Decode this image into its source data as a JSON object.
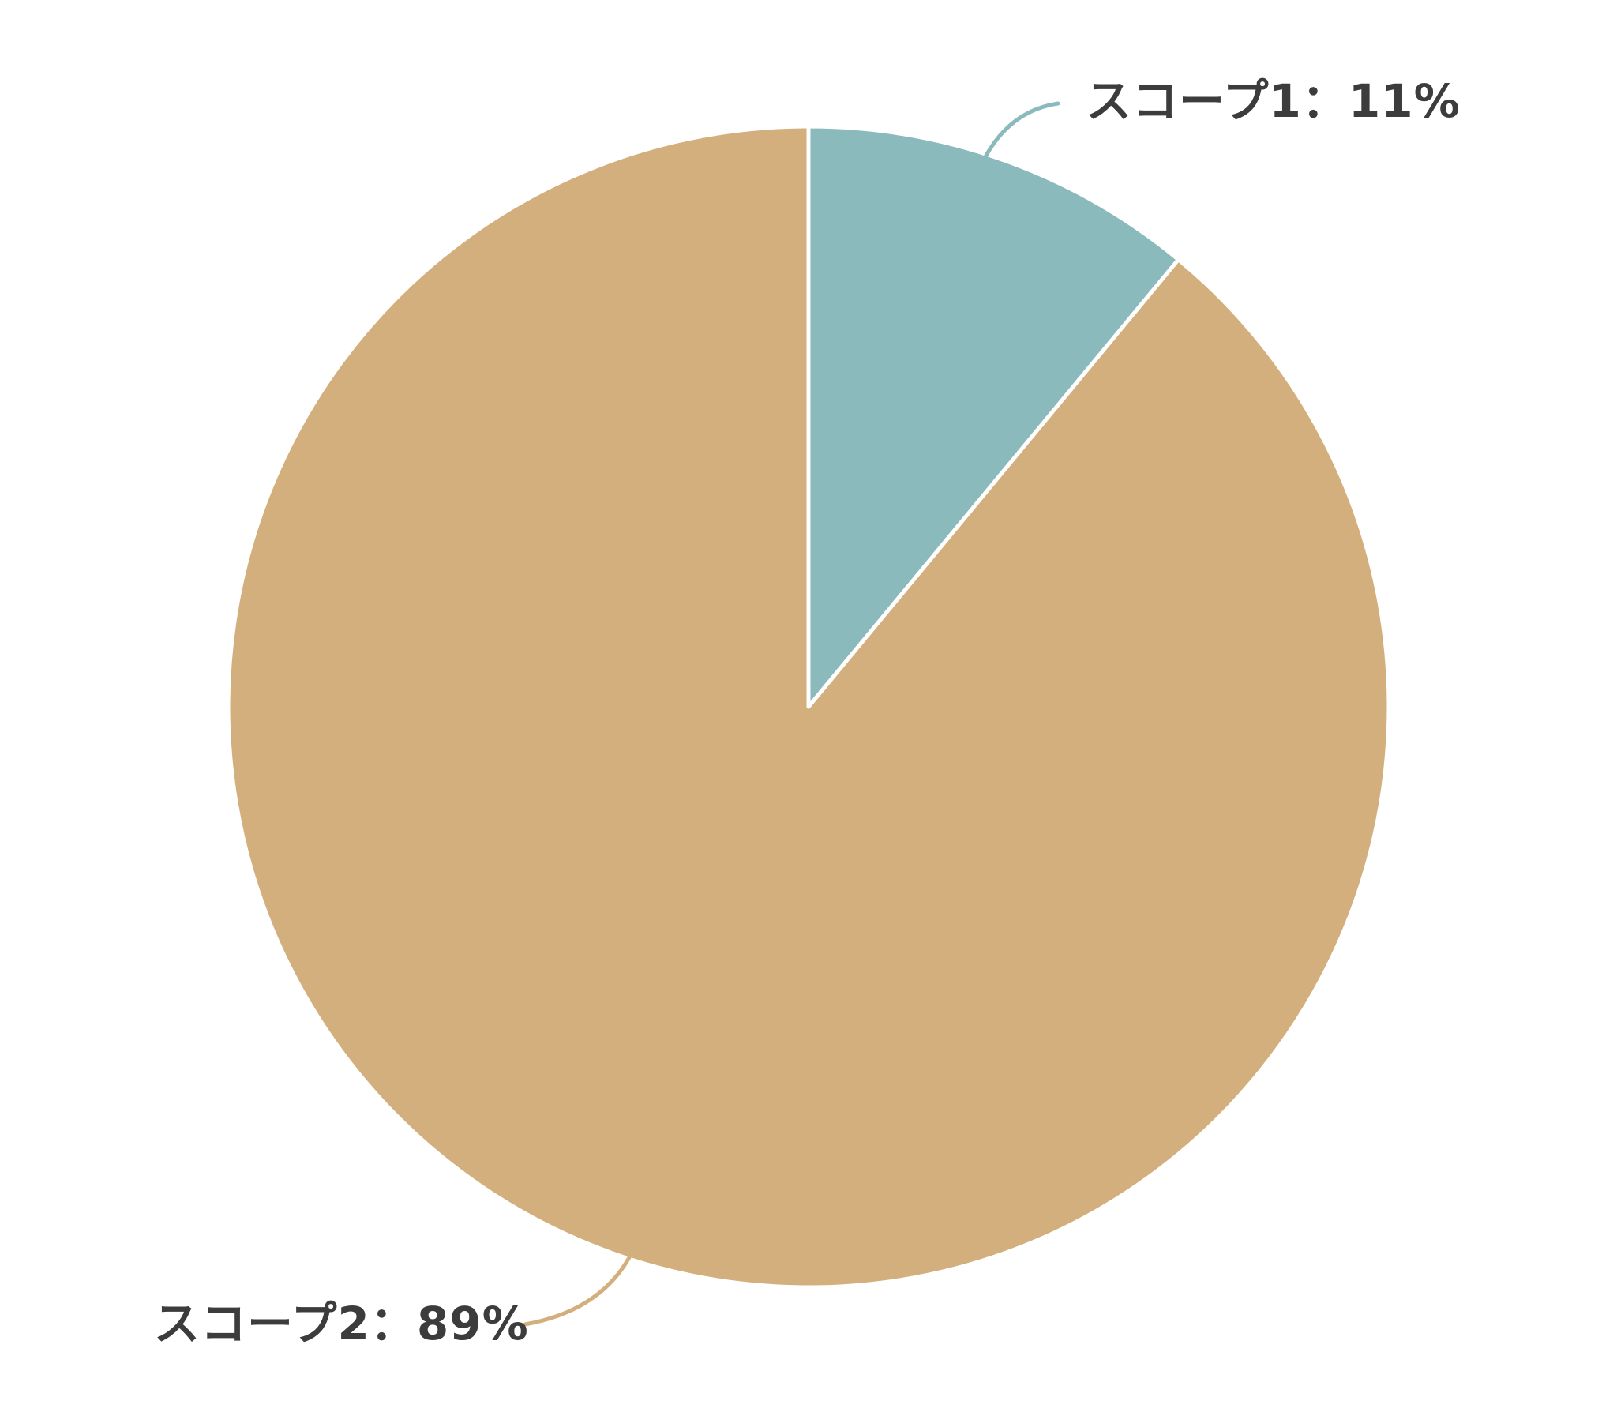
{
  "chart_data": {
    "type": "pie",
    "slices": [
      {
        "name": "スコープ1",
        "value": 11,
        "label": "スコープ1：11%",
        "color": "#8BBABC"
      },
      {
        "name": "スコープ2",
        "value": 89,
        "label": "スコープ2：89%",
        "color": "#D3AF7D"
      }
    ],
    "start_angle": "12 o'clock",
    "direction": "clockwise",
    "label_placement": "outside with leader lines",
    "slice_border_color": "#FFFFFF"
  }
}
